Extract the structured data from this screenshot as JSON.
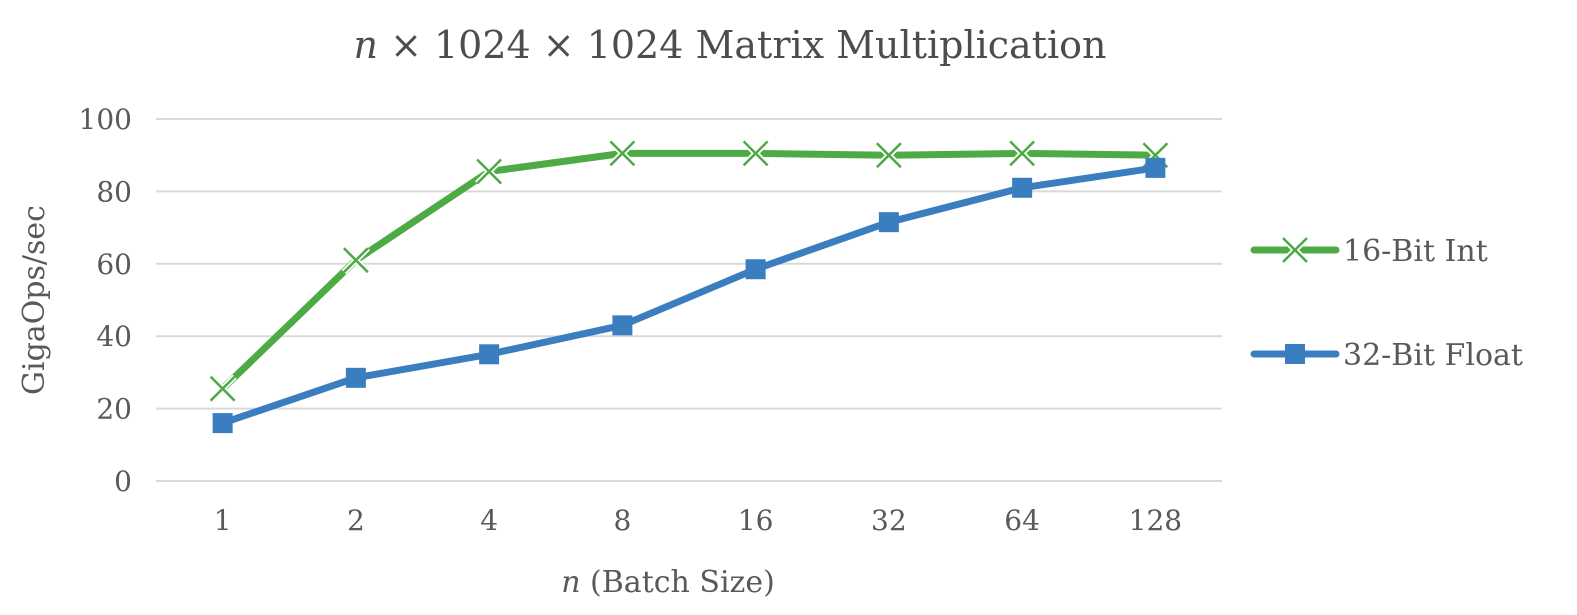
{
  "chart_data": {
    "type": "line",
    "title": {
      "italic_part": "n",
      "rest": " × 1024 × 1024 Matrix Multiplication"
    },
    "xlabel": {
      "italic_part": "n",
      "rest": " (Batch Size)"
    },
    "ylabel": "GigaOps/sec",
    "categories": [
      "1",
      "2",
      "4",
      "8",
      "16",
      "32",
      "64",
      "128"
    ],
    "y_ticks": [
      "0",
      "20",
      "40",
      "60",
      "80",
      "100"
    ],
    "ylim": [
      0,
      100
    ],
    "grid": true,
    "legend_position": "right",
    "series": [
      {
        "name": "16-Bit Int",
        "color": "#4daa45",
        "marker": "x-icon",
        "values": [
          25.5,
          61,
          85.5,
          90.5,
          90.5,
          90,
          90.5,
          90
        ]
      },
      {
        "name": "32-Bit Float",
        "color": "#3a7ebf",
        "marker": "square-icon",
        "values": [
          16,
          28.5,
          35,
          43,
          58.5,
          71.5,
          81,
          86.5
        ]
      }
    ]
  }
}
